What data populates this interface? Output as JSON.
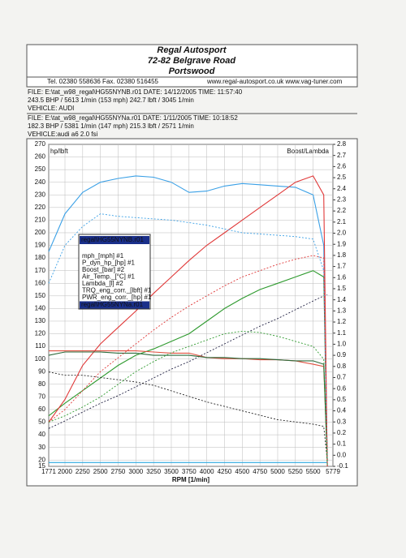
{
  "header": {
    "title": "Regal Autosport",
    "address": "72-82 Belgrave Road",
    "town": "Portswood",
    "contact": "Tel. 02380 558636   Fax. 02380 516455",
    "web": "www.regal-autosport.co.uk www.vag-tuner.com"
  },
  "runs": [
    {
      "file": "FILE: E:\\tat_w98_regal\\HG55NYNB.r01  DATE: 14/12/2005  TIME: 11:57:40",
      "summary": "243.5 BHP / 5613 1/min (153 mph)     242.7 lbft / 3045 1/min",
      "vehicle": "VEHICLE: AUDI"
    },
    {
      "file": "FILE: E:\\tat_w98_regal\\HG55NYNa.r01  DATE: 1/11/2005  TIME: 10:18:52",
      "summary": "182.3 BHP / 5381 1/min (147 mph)     215.3 lbft / 2571 1/min",
      "vehicle": "VEHICLE:audi a6 2.0 fsi"
    }
  ],
  "chart_data": {
    "type": "line",
    "y_label": "hp/lbft",
    "y2_label": "Boost/Lambda",
    "x_label": "RPM  [1/min]",
    "legend_title": "regal\\HG55NYNB.r01",
    "legend_footer": "regal\\HG55NYNa.r01",
    "x": [
      1771,
      2000,
      2250,
      2500,
      2750,
      3000,
      3250,
      3500,
      3750,
      4000,
      4250,
      4500,
      4750,
      5000,
      5250,
      5500,
      5650,
      5700
    ],
    "xlim": [
      1771,
      5779
    ],
    "xticks": [
      1771,
      2000,
      2250,
      2500,
      2750,
      3000,
      3250,
      3500,
      3750,
      4000,
      4250,
      4500,
      4750,
      5000,
      5250,
      5500,
      5779
    ],
    "ylim": [
      15,
      270
    ],
    "yticks": [
      15,
      20,
      30,
      40,
      50,
      60,
      70,
      80,
      90,
      100,
      110,
      120,
      130,
      140,
      150,
      160,
      170,
      180,
      190,
      200,
      210,
      220,
      230,
      240,
      250,
      260,
      270
    ],
    "y2lim": [
      -0.1,
      2.8
    ],
    "y2ticks": [
      -0.1,
      {
        "value": 0,
        "label": "0.0"
      },
      0.1,
      0.2,
      0.3,
      0.4,
      0.5,
      0.6,
      0.7,
      0.8,
      0.9,
      {
        "value": 1,
        "label": "1.0"
      },
      1.1,
      1.2,
      1.3,
      1.4,
      1.5,
      1.6,
      1.7,
      1.8,
      1.9,
      {
        "value": 2,
        "label": "2.0"
      },
      2.1,
      2.2,
      2.3,
      2.4,
      2.5,
      2.6,
      2.7,
      2.8
    ],
    "series": [
      {
        "name": "mph_[mph] #1",
        "color": "#222244",
        "dash": true,
        "values": [
          45,
          51,
          58,
          65,
          71,
          78,
          85,
          92,
          98,
          105,
          112,
          119,
          126,
          132,
          139,
          146,
          150,
          151
        ]
      },
      {
        "name": "P_dyn_hp_[hp] #1",
        "color": "#2e9a2e",
        "values": [
          55,
          65,
          75,
          85,
          95,
          103,
          108,
          114,
          120,
          130,
          140,
          148,
          155,
          160,
          165,
          170,
          165,
          15
        ]
      },
      {
        "name": "Boost_[bar] #2",
        "color": "#222222",
        "dash": true,
        "axis": "y2",
        "values": [
          0.75,
          0.72,
          0.72,
          0.7,
          0.68,
          0.66,
          0.63,
          0.58,
          0.53,
          0.48,
          0.44,
          0.4,
          0.36,
          0.32,
          0.3,
          0.28,
          0.26,
          -0.05
        ]
      },
      {
        "name": "Air_Temp._[°C] #1",
        "color": "#2aa8e0",
        "values": [
          18,
          18,
          18,
          18,
          18,
          18,
          18,
          18,
          18,
          18,
          18,
          18,
          18,
          18,
          18,
          18,
          18,
          18
        ]
      },
      {
        "name": "Lambda_[l] #2",
        "color": "#e05040",
        "axis": "y2",
        "values": [
          0.94,
          0.94,
          0.94,
          0.94,
          0.94,
          0.94,
          0.93,
          0.92,
          0.92,
          0.88,
          0.87,
          0.87,
          0.86,
          0.86,
          0.85,
          0.82,
          0.8,
          -0.05
        ]
      },
      {
        "name": "TRQ_eng_corr._[lbft] #1",
        "color": "#3aa0e6",
        "values": [
          185,
          215,
          232,
          240,
          243,
          245,
          244,
          240,
          232,
          233,
          237,
          239,
          238,
          237,
          236,
          230,
          190,
          15
        ]
      },
      {
        "name": "PWR_eng_corr._[hp] #1",
        "color": "#e03838",
        "values": [
          50,
          68,
          95,
          112,
          125,
          138,
          152,
          165,
          178,
          190,
          200,
          210,
          220,
          230,
          240,
          245,
          230,
          15
        ]
      },
      {
        "color": "#2b6a3a",
        "axis": "y2",
        "values": [
          0.9,
          0.93,
          0.93,
          0.93,
          0.92,
          0.92,
          0.9,
          0.9,
          0.9,
          0.88,
          0.88,
          0.87,
          0.87,
          0.86,
          0.85,
          0.85,
          0.82,
          -0.05
        ]
      },
      {
        "color": "#3aa0e6",
        "dash": true,
        "values": [
          160,
          190,
          205,
          215,
          213,
          212,
          211,
          210,
          208,
          206,
          203,
          200,
          199,
          198,
          197,
          195,
          170,
          15
        ]
      },
      {
        "color": "#e03838",
        "dash": true,
        "values": [
          50,
          60,
          75,
          90,
          101,
          112,
          123,
          133,
          142,
          150,
          158,
          165,
          170,
          175,
          179,
          182,
          180,
          15
        ]
      },
      {
        "color": "#2e9a2e",
        "dash": true,
        "values": [
          50,
          55,
          62,
          70,
          80,
          90,
          98,
          105,
          110,
          115,
          120,
          122,
          121,
          118,
          114,
          110,
          100,
          15
        ]
      }
    ]
  }
}
